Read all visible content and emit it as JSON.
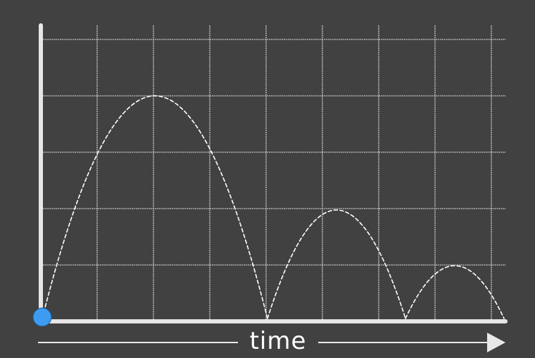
{
  "diagram": {
    "x_axis_label": "time",
    "bounce_count": 3,
    "colors": {
      "background": "#414141",
      "grid": "#d8d8d8",
      "axis": "#e6e6e6",
      "trajectory": "#ffffff",
      "ball": "#3d9bf0",
      "arrow": "#e8e8e8"
    }
  }
}
